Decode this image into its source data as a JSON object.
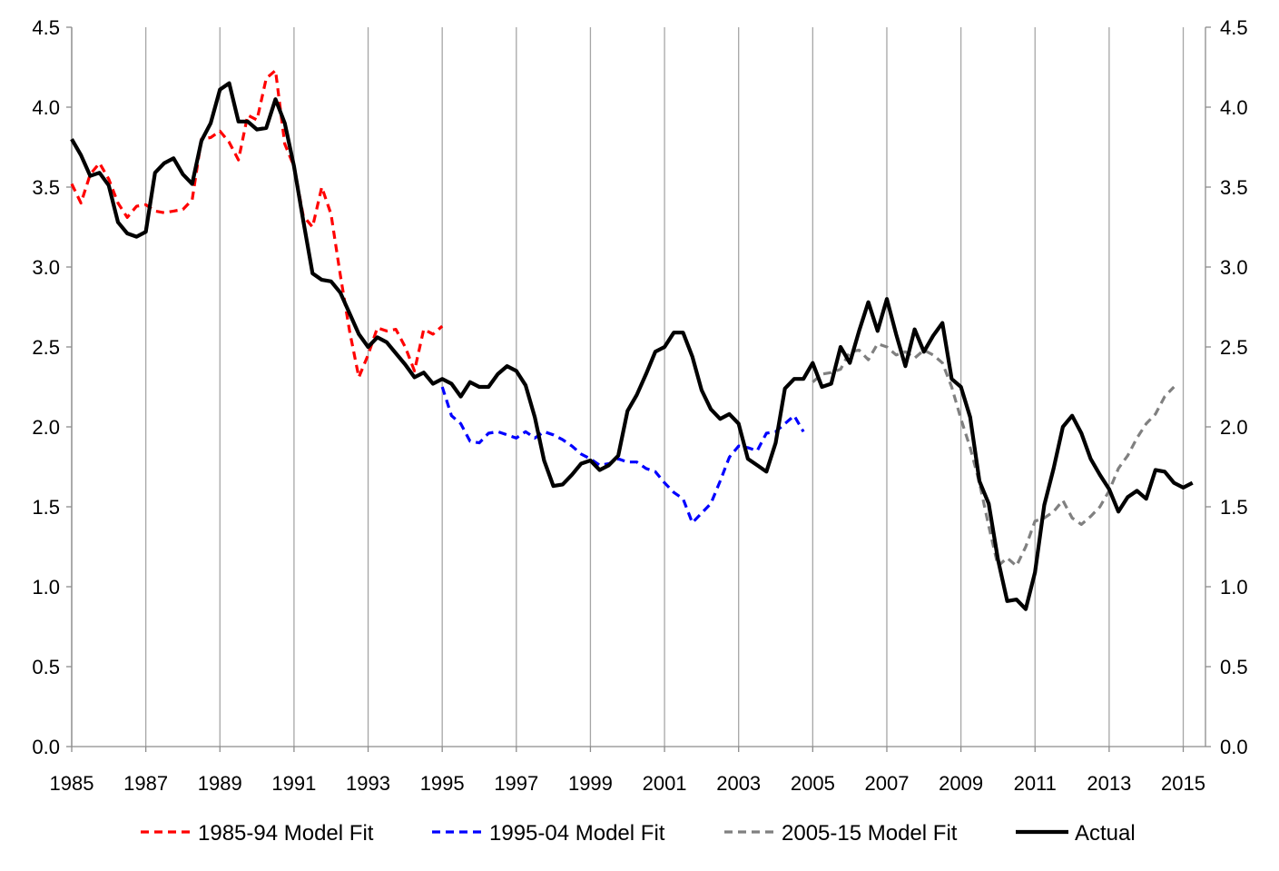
{
  "chart_data": {
    "type": "line",
    "title": "",
    "xlabel": "",
    "ylabel": "",
    "xlim": [
      1985,
      2015.6
    ],
    "ylim": [
      0,
      4.5
    ],
    "grid": "vertical",
    "legend_position": "bottom",
    "x_ticks": [
      1985,
      1987,
      1989,
      1991,
      1993,
      1995,
      1997,
      1999,
      2001,
      2003,
      2005,
      2007,
      2009,
      2011,
      2013,
      2015
    ],
    "x_tick_labels": [
      "1985",
      "1987",
      "1989",
      "1991",
      "1993",
      "1995",
      "1997",
      "1999",
      "2001",
      "2003",
      "2005",
      "2007",
      "2009",
      "2011",
      "2013",
      "2015"
    ],
    "y_ticks": [
      0,
      0.5,
      1,
      1.5,
      2,
      2.5,
      3,
      3.5,
      4,
      4.5
    ],
    "y_tick_labels": [
      "0.0",
      "0.5",
      "1.0",
      "1.5",
      "2.0",
      "2.5",
      "3.0",
      "3.5",
      "4.0",
      "4.5"
    ],
    "series": [
      {
        "name": "1985-94 Model Fit",
        "color": "#ff0000",
        "style": "dashed",
        "points": [
          [
            1985.0,
            3.52
          ],
          [
            1985.25,
            3.4
          ],
          [
            1985.5,
            3.58
          ],
          [
            1985.75,
            3.65
          ],
          [
            1986.0,
            3.55
          ],
          [
            1986.25,
            3.4
          ],
          [
            1986.5,
            3.31
          ],
          [
            1986.75,
            3.38
          ],
          [
            1987.0,
            3.39
          ],
          [
            1987.25,
            3.35
          ],
          [
            1987.5,
            3.34
          ],
          [
            1987.75,
            3.35
          ],
          [
            1988.0,
            3.36
          ],
          [
            1988.25,
            3.42
          ],
          [
            1988.5,
            3.8
          ],
          [
            1988.75,
            3.81
          ],
          [
            1989.0,
            3.85
          ],
          [
            1989.25,
            3.78
          ],
          [
            1989.5,
            3.67
          ],
          [
            1989.75,
            3.95
          ],
          [
            1990.0,
            3.92
          ],
          [
            1990.25,
            4.18
          ],
          [
            1990.5,
            4.23
          ],
          [
            1990.75,
            3.77
          ],
          [
            1991.0,
            3.63
          ],
          [
            1991.25,
            3.32
          ],
          [
            1991.5,
            3.25
          ],
          [
            1991.75,
            3.5
          ],
          [
            1992.0,
            3.33
          ],
          [
            1992.25,
            2.95
          ],
          [
            1992.5,
            2.6
          ],
          [
            1992.75,
            2.31
          ],
          [
            1993.0,
            2.45
          ],
          [
            1993.25,
            2.62
          ],
          [
            1993.5,
            2.6
          ],
          [
            1993.75,
            2.61
          ],
          [
            1994.0,
            2.5
          ],
          [
            1994.25,
            2.35
          ],
          [
            1994.5,
            2.61
          ],
          [
            1994.75,
            2.58
          ],
          [
            1995.0,
            2.63
          ]
        ]
      },
      {
        "name": "1995-04 Model Fit",
        "color": "#0000ff",
        "style": "dashed",
        "points": [
          [
            1995.0,
            2.25
          ],
          [
            1995.25,
            2.07
          ],
          [
            1995.5,
            2.02
          ],
          [
            1995.75,
            1.91
          ],
          [
            1996.0,
            1.9
          ],
          [
            1996.25,
            1.96
          ],
          [
            1996.5,
            1.97
          ],
          [
            1996.75,
            1.95
          ],
          [
            1997.0,
            1.93
          ],
          [
            1997.25,
            1.97
          ],
          [
            1997.5,
            1.93
          ],
          [
            1997.75,
            1.97
          ],
          [
            1998.0,
            1.95
          ],
          [
            1998.25,
            1.92
          ],
          [
            1998.5,
            1.88
          ],
          [
            1998.75,
            1.83
          ],
          [
            1999.0,
            1.8
          ],
          [
            1999.25,
            1.76
          ],
          [
            1999.5,
            1.77
          ],
          [
            1999.75,
            1.8
          ],
          [
            2000.0,
            1.78
          ],
          [
            2000.25,
            1.78
          ],
          [
            2000.5,
            1.74
          ],
          [
            2000.75,
            1.72
          ],
          [
            2001.0,
            1.65
          ],
          [
            2001.25,
            1.59
          ],
          [
            2001.5,
            1.55
          ],
          [
            2001.75,
            1.4
          ],
          [
            2002.0,
            1.46
          ],
          [
            2002.25,
            1.52
          ],
          [
            2002.5,
            1.66
          ],
          [
            2002.75,
            1.81
          ],
          [
            2003.0,
            1.88
          ],
          [
            2003.25,
            1.87
          ],
          [
            2003.5,
            1.85
          ],
          [
            2003.75,
            1.96
          ],
          [
            2004.0,
            1.97
          ],
          [
            2004.25,
            2.02
          ],
          [
            2004.5,
            2.07
          ],
          [
            2004.75,
            1.97
          ]
        ]
      },
      {
        "name": "2005-15 Model Fit",
        "color": "#808080",
        "style": "dashed",
        "points": [
          [
            2005.0,
            2.28
          ],
          [
            2005.25,
            2.33
          ],
          [
            2005.5,
            2.34
          ],
          [
            2005.75,
            2.36
          ],
          [
            2006.0,
            2.47
          ],
          [
            2006.25,
            2.48
          ],
          [
            2006.5,
            2.42
          ],
          [
            2006.75,
            2.52
          ],
          [
            2007.0,
            2.5
          ],
          [
            2007.25,
            2.45
          ],
          [
            2007.5,
            2.47
          ],
          [
            2007.75,
            2.43
          ],
          [
            2008.0,
            2.48
          ],
          [
            2008.25,
            2.45
          ],
          [
            2008.5,
            2.4
          ],
          [
            2008.75,
            2.25
          ],
          [
            2009.0,
            2.05
          ],
          [
            2009.25,
            1.87
          ],
          [
            2009.5,
            1.65
          ],
          [
            2009.75,
            1.38
          ],
          [
            2010.0,
            1.13
          ],
          [
            2010.25,
            1.18
          ],
          [
            2010.5,
            1.13
          ],
          [
            2010.75,
            1.25
          ],
          [
            2011.0,
            1.41
          ],
          [
            2011.25,
            1.43
          ],
          [
            2011.5,
            1.47
          ],
          [
            2011.75,
            1.54
          ],
          [
            2012.0,
            1.43
          ],
          [
            2012.25,
            1.39
          ],
          [
            2012.5,
            1.44
          ],
          [
            2012.75,
            1.5
          ],
          [
            2013.0,
            1.6
          ],
          [
            2013.25,
            1.74
          ],
          [
            2013.5,
            1.82
          ],
          [
            2013.75,
            1.93
          ],
          [
            2014.0,
            2.02
          ],
          [
            2014.25,
            2.08
          ],
          [
            2014.5,
            2.19
          ],
          [
            2014.75,
            2.25
          ]
        ]
      },
      {
        "name": "Actual",
        "color": "#000000",
        "style": "solid",
        "points": [
          [
            1985.0,
            3.8
          ],
          [
            1985.25,
            3.7
          ],
          [
            1985.5,
            3.57
          ],
          [
            1985.75,
            3.59
          ],
          [
            1986.0,
            3.51
          ],
          [
            1986.25,
            3.28
          ],
          [
            1986.5,
            3.21
          ],
          [
            1986.75,
            3.19
          ],
          [
            1987.0,
            3.22
          ],
          [
            1987.25,
            3.59
          ],
          [
            1987.5,
            3.65
          ],
          [
            1987.75,
            3.68
          ],
          [
            1988.0,
            3.58
          ],
          [
            1988.25,
            3.52
          ],
          [
            1988.5,
            3.79
          ],
          [
            1988.75,
            3.9
          ],
          [
            1989.0,
            4.11
          ],
          [
            1989.25,
            4.15
          ],
          [
            1989.5,
            3.91
          ],
          [
            1989.75,
            3.91
          ],
          [
            1990.0,
            3.86
          ],
          [
            1990.25,
            3.87
          ],
          [
            1990.5,
            4.05
          ],
          [
            1990.75,
            3.9
          ],
          [
            1991.0,
            3.63
          ],
          [
            1991.25,
            3.29
          ],
          [
            1991.5,
            2.96
          ],
          [
            1991.75,
            2.92
          ],
          [
            1992.0,
            2.91
          ],
          [
            1992.25,
            2.84
          ],
          [
            1992.5,
            2.71
          ],
          [
            1992.75,
            2.58
          ],
          [
            1993.0,
            2.5
          ],
          [
            1993.25,
            2.56
          ],
          [
            1993.5,
            2.53
          ],
          [
            1993.75,
            2.46
          ],
          [
            1994.0,
            2.39
          ],
          [
            1994.25,
            2.31
          ],
          [
            1994.5,
            2.34
          ],
          [
            1994.75,
            2.27
          ],
          [
            1995.0,
            2.3
          ],
          [
            1995.25,
            2.27
          ],
          [
            1995.5,
            2.19
          ],
          [
            1995.75,
            2.28
          ],
          [
            1996.0,
            2.25
          ],
          [
            1996.25,
            2.25
          ],
          [
            1996.5,
            2.33
          ],
          [
            1996.75,
            2.38
          ],
          [
            1997.0,
            2.35
          ],
          [
            1997.25,
            2.26
          ],
          [
            1997.5,
            2.06
          ],
          [
            1997.75,
            1.79
          ],
          [
            1998.0,
            1.63
          ],
          [
            1998.25,
            1.64
          ],
          [
            1998.5,
            1.7
          ],
          [
            1998.75,
            1.77
          ],
          [
            1999.0,
            1.79
          ],
          [
            1999.25,
            1.73
          ],
          [
            1999.5,
            1.76
          ],
          [
            1999.75,
            1.82
          ],
          [
            2000.0,
            2.1
          ],
          [
            2000.25,
            2.2
          ],
          [
            2000.5,
            2.33
          ],
          [
            2000.75,
            2.47
          ],
          [
            2001.0,
            2.5
          ],
          [
            2001.25,
            2.59
          ],
          [
            2001.5,
            2.59
          ],
          [
            2001.75,
            2.44
          ],
          [
            2002.0,
            2.23
          ],
          [
            2002.25,
            2.11
          ],
          [
            2002.5,
            2.05
          ],
          [
            2002.75,
            2.08
          ],
          [
            2003.0,
            2.02
          ],
          [
            2003.25,
            1.8
          ],
          [
            2003.5,
            1.76
          ],
          [
            2003.75,
            1.72
          ],
          [
            2004.0,
            1.9
          ],
          [
            2004.25,
            2.24
          ],
          [
            2004.5,
            2.3
          ],
          [
            2004.75,
            2.3
          ],
          [
            2005.0,
            2.4
          ],
          [
            2005.25,
            2.25
          ],
          [
            2005.5,
            2.27
          ],
          [
            2005.75,
            2.5
          ],
          [
            2006.0,
            2.4
          ],
          [
            2006.25,
            2.6
          ],
          [
            2006.5,
            2.78
          ],
          [
            2006.75,
            2.6
          ],
          [
            2007.0,
            2.8
          ],
          [
            2007.25,
            2.58
          ],
          [
            2007.5,
            2.38
          ],
          [
            2007.75,
            2.61
          ],
          [
            2008.0,
            2.47
          ],
          [
            2008.25,
            2.57
          ],
          [
            2008.5,
            2.65
          ],
          [
            2008.75,
            2.3
          ],
          [
            2009.0,
            2.25
          ],
          [
            2009.25,
            2.06
          ],
          [
            2009.5,
            1.66
          ],
          [
            2009.75,
            1.52
          ],
          [
            2010.0,
            1.17
          ],
          [
            2010.25,
            0.91
          ],
          [
            2010.5,
            0.92
          ],
          [
            2010.75,
            0.86
          ],
          [
            2011.0,
            1.09
          ],
          [
            2011.25,
            1.51
          ],
          [
            2011.5,
            1.74
          ],
          [
            2011.75,
            2.0
          ],
          [
            2012.0,
            2.07
          ],
          [
            2012.25,
            1.96
          ],
          [
            2012.5,
            1.8
          ],
          [
            2012.75,
            1.7
          ],
          [
            2013.0,
            1.61
          ],
          [
            2013.25,
            1.47
          ],
          [
            2013.5,
            1.56
          ],
          [
            2013.75,
            1.6
          ],
          [
            2014.0,
            1.55
          ],
          [
            2014.25,
            1.73
          ],
          [
            2014.5,
            1.72
          ],
          [
            2014.75,
            1.65
          ],
          [
            2015.0,
            1.62
          ],
          [
            2015.25,
            1.65
          ]
        ]
      }
    ]
  }
}
